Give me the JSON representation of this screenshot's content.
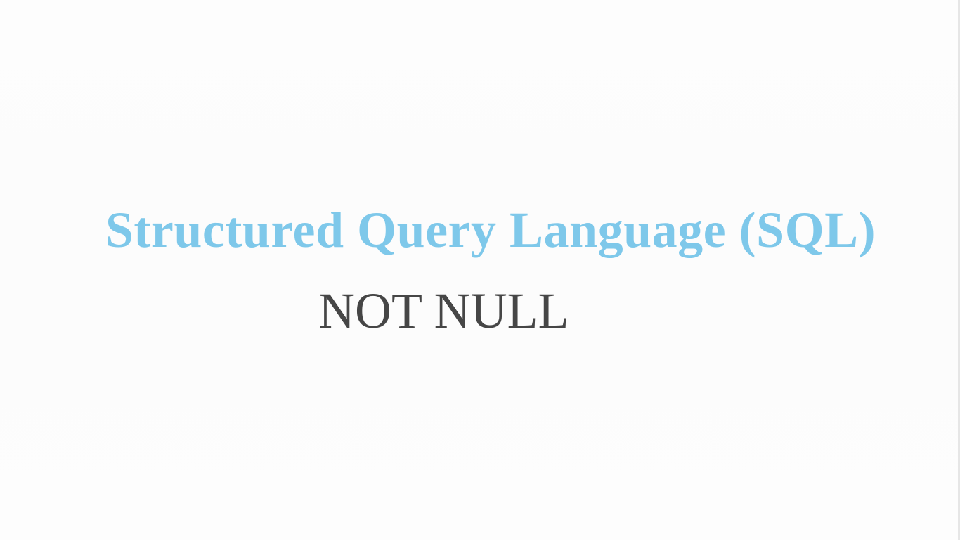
{
  "slide": {
    "title": "Structured Query Language (SQL)",
    "subtitle": "NOT NULL"
  },
  "colors": {
    "title": "#7ec8ea",
    "subtitle": "#464646",
    "background": "#fdfdfd"
  }
}
